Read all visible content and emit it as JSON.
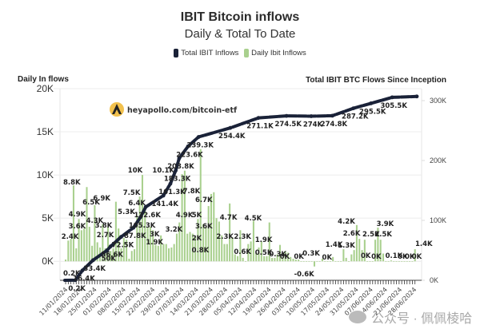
{
  "header": {
    "title": "IBIT Bitcoin inflows",
    "subtitle": "Daily & Total To Date"
  },
  "legend": [
    {
      "label": "Total IBIT Inflows",
      "color": "#1a2238"
    },
    {
      "label": "Daily Ibit Inflows",
      "color": "#a9d08e"
    }
  ],
  "watermark_logo": {
    "icon": "apollo-logo-icon",
    "text": "heyapollo.com/bitcoin-etf",
    "icon_color": "#f2c14e"
  },
  "watermark_footer": {
    "icon": "wechat-icon",
    "text": "公众号 · 佩佩棱哈"
  },
  "chart_data": {
    "type": "bar+line",
    "title": "IBIT Bitcoin inflows",
    "subtitle": "Daily & Total To Date",
    "legend_position": "top-center",
    "grid": true,
    "left_axis": {
      "label": "Daily In flows",
      "ticks": [
        "20K",
        "15K",
        "10K",
        "5K",
        "0K"
      ],
      "tick_values": [
        20000,
        15000,
        10000,
        5000,
        0
      ],
      "range": [
        -2200,
        20000
      ]
    },
    "right_axis": {
      "label": "Total IBIT BTC Flows Since Inception",
      "ticks": [
        "300K",
        "200K",
        "100K",
        "0K"
      ],
      "tick_values": [
        300000,
        200000,
        100000,
        0
      ],
      "range": [
        0,
        320000
      ]
    },
    "x_tick_labels": [
      "11/01/2024",
      "18/01/2024",
      "25/01/2024",
      "01/02/2024",
      "08/02/2024",
      "15/02/2024",
      "22/02/2024",
      "29/02/2024",
      "07/03/2024",
      "14/03/2024",
      "21/03/2024",
      "28/03/2024",
      "05/04/2024",
      "12/04/2024",
      "19/04/2024",
      "26/04/2024",
      "03/05/2024",
      "10/05/2024",
      "17/05/2024",
      "24/05/2024",
      "31/05/2024",
      "07/06/2024",
      "14/06/2024",
      "21/06/2024",
      "28/06/2024"
    ],
    "series": [
      {
        "name": "Daily Ibit Inflows",
        "type": "bar",
        "color": "#a9d08e",
        "values": [
          200,
          2400,
          2600,
          8800,
          1500,
          4900,
          3600,
          3800,
          8600,
          4000,
          1800,
          6500,
          2200,
          1600,
          4300,
          1500,
          4000,
          1200,
          1500,
          6900,
          3800,
          1500,
          2700,
          2500,
          300,
          1200,
          1400,
          5300,
          7500,
          10000,
          6400,
          4000,
          4000,
          3600,
          1900,
          1800,
          3000,
          2000,
          2000,
          1500,
          1600,
          2000,
          3200,
          4500,
          10100,
          10500,
          3200,
          3400,
          3200,
          3000,
          4900,
          13000,
          4300,
          4000,
          6400,
          7800,
          8000,
          5000,
          4600,
          3000,
          2000,
          2000,
          6700,
          2800,
          800,
          600,
          3600,
          400,
          0,
          2000,
          2300,
          4700,
          1000,
          1600,
          2300,
          600,
          600,
          4500,
          400,
          400,
          800,
          1900,
          500,
          1200,
          1000,
          500,
          300,
          200,
          200,
          0,
          0,
          0,
          0,
          0,
          -600,
          0,
          0,
          300,
          0,
          0,
          0,
          500,
          0,
          0,
          0,
          1400,
          400,
          0,
          800,
          1300,
          4200,
          2600,
          1300,
          2500,
          0,
          0,
          0,
          2500,
          3900,
          2500,
          900,
          0,
          0,
          100,
          0,
          0,
          0,
          0,
          0,
          0,
          0,
          0,
          1400
        ],
        "data_labels": [
          "0.2K",
          "2.4K",
          "8.8K",
          "4.9K",
          "3.6K",
          "6.5K",
          "4.3K",
          "6.9K",
          "3.8K",
          "2.7K",
          "5.3K",
          "7.5K",
          "10K",
          "6.4K",
          "3K",
          "1.9K",
          "3.2K",
          "10.1K",
          "4.9K",
          "5K",
          "7.8K",
          "2K",
          "6.7K",
          "3.6K",
          "0.8K",
          "4.7K",
          "2.3K",
          "2.3K",
          "0.6K",
          "4.5K",
          "1.9K",
          "0.5K",
          "0.3K",
          "0K",
          "0K",
          "-0.6K",
          "0.3K",
          "0K",
          "1.4K",
          "4.2K",
          "2.6K",
          "1.3K",
          "2.5K",
          "0K",
          "3.9K",
          "0K",
          "2.5K",
          "0.1K",
          "0K",
          "0K",
          "0K",
          "1.4K"
        ]
      },
      {
        "name": "Total IBIT Inflows",
        "type": "line",
        "axis": "right",
        "color": "#1a2238",
        "points": [
          {
            "label": "0.2K",
            "value": 200,
            "t": 0.03
          },
          {
            "label": "16.4K",
            "value": 16400,
            "t": 0.05
          },
          {
            "label": "33.4K",
            "value": 33400,
            "t": 0.08
          },
          {
            "label": "50K",
            "value": 50000,
            "t": 0.12
          },
          {
            "label": "56.6K",
            "value": 56600,
            "t": 0.13
          },
          {
            "label": "72.5K",
            "value": 72500,
            "t": 0.16
          },
          {
            "label": "87.8K",
            "value": 87800,
            "t": 0.195
          },
          {
            "label": "105.3K",
            "value": 105300,
            "t": 0.215
          },
          {
            "label": "122.6K",
            "value": 122600,
            "t": 0.23
          },
          {
            "label": "141.4K",
            "value": 141400,
            "t": 0.28
          },
          {
            "label": "161.3K",
            "value": 161300,
            "t": 0.3
          },
          {
            "label": "183.3K",
            "value": 183300,
            "t": 0.315
          },
          {
            "label": "203.8K",
            "value": 203800,
            "t": 0.325
          },
          {
            "label": "223.6K",
            "value": 223600,
            "t": 0.35
          },
          {
            "label": "239.3K",
            "value": 239300,
            "t": 0.38
          },
          {
            "label": "254.4K",
            "value": 254400,
            "t": 0.47
          },
          {
            "label": "271.1K",
            "value": 271100,
            "t": 0.55
          },
          {
            "label": "274.5K",
            "value": 274500,
            "t": 0.63
          },
          {
            "label": "274K",
            "value": 274000,
            "t": 0.7
          },
          {
            "label": "274.8K",
            "value": 274800,
            "t": 0.76
          },
          {
            "label": "287.2K",
            "value": 287200,
            "t": 0.82
          },
          {
            "label": "295.5K",
            "value": 295500,
            "t": 0.87
          },
          {
            "label": "305.5K",
            "value": 305500,
            "t": 0.93
          },
          {
            "label": "",
            "value": 307000,
            "t": 1.0
          }
        ]
      }
    ]
  }
}
